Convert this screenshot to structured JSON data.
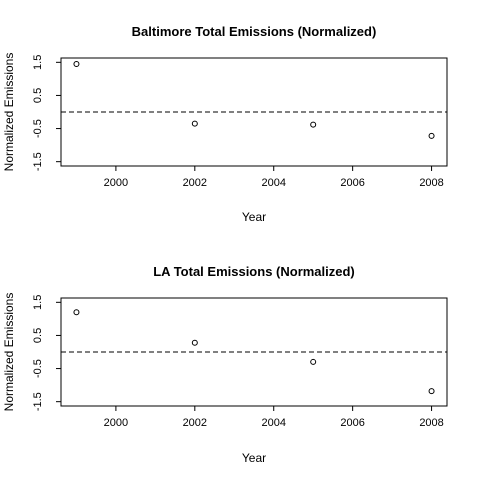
{
  "chart_data": [
    {
      "type": "scatter",
      "title": "Baltimore Total Emissions (Normalized)",
      "xlabel": "Year",
      "ylabel": "Normalized Emissions",
      "xlim": [
        1999,
        2008
      ],
      "ylim": [
        -1.5,
        1.5
      ],
      "x_ticks": [
        2000,
        2002,
        2004,
        2006,
        2008
      ],
      "x_tick_labels": [
        "2000",
        "2002",
        "2004",
        "2006",
        "2008"
      ],
      "y_ticks": [
        -1.5,
        -0.5,
        0.5,
        1.5
      ],
      "y_tick_labels": [
        "-1.5",
        "-0.5",
        "0.5",
        "1.5"
      ],
      "reference_line": 0,
      "grid": false,
      "series": [
        {
          "x": [
            1999,
            2002,
            2005,
            2008
          ],
          "y": [
            1.45,
            -0.35,
            -0.38,
            -0.72
          ]
        }
      ]
    },
    {
      "type": "scatter",
      "title": "LA Total Emissions (Normalized)",
      "xlabel": "Year",
      "ylabel": "Normalized Emissions",
      "xlim": [
        1999,
        2008
      ],
      "ylim": [
        -1.5,
        1.5
      ],
      "x_ticks": [
        2000,
        2002,
        2004,
        2006,
        2008
      ],
      "x_tick_labels": [
        "2000",
        "2002",
        "2004",
        "2006",
        "2008"
      ],
      "y_ticks": [
        -1.5,
        -0.5,
        0.5,
        1.5
      ],
      "y_tick_labels": [
        "-1.5",
        "-0.5",
        "0.5",
        "1.5"
      ],
      "reference_line": 0,
      "grid": false,
      "series": [
        {
          "x": [
            1999,
            2002,
            2005,
            2008
          ],
          "y": [
            1.2,
            0.28,
            -0.3,
            -1.18
          ]
        }
      ]
    }
  ]
}
